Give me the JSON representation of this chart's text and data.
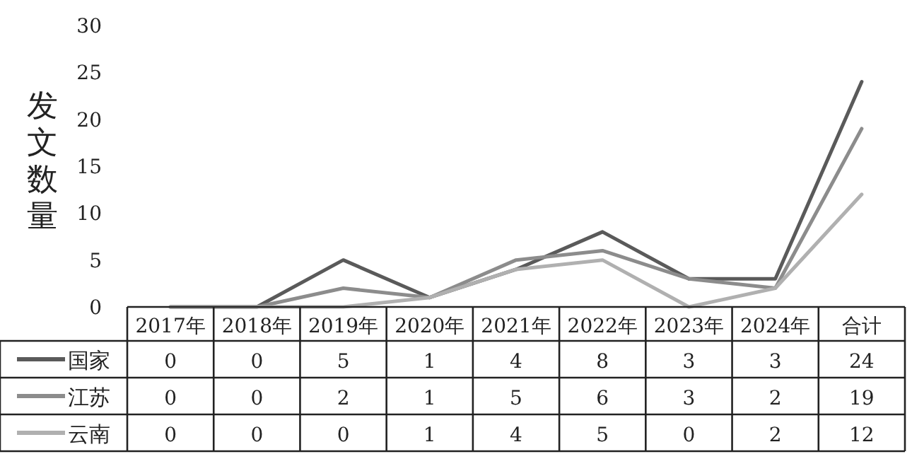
{
  "chart_data": {
    "type": "line",
    "ylabel": "发文数量",
    "categories": [
      "2017年",
      "2018年",
      "2019年",
      "2020年",
      "2021年",
      "2022年",
      "2023年",
      "2024年",
      "合计"
    ],
    "series": [
      {
        "name": "国家",
        "color": "#5a5a5a",
        "values": [
          0,
          0,
          5,
          1,
          4,
          8,
          3,
          3,
          24
        ]
      },
      {
        "name": "江苏",
        "color": "#8c8c8c",
        "values": [
          0,
          0,
          2,
          1,
          5,
          6,
          3,
          2,
          19
        ]
      },
      {
        "name": "云南",
        "color": "#b0b0b0",
        "values": [
          0,
          0,
          0,
          1,
          4,
          5,
          0,
          2,
          12
        ]
      }
    ],
    "ylim": [
      0,
      30
    ],
    "yticks": [
      0,
      5,
      10,
      15,
      20,
      25,
      30
    ],
    "grid": false,
    "legend": "bottom",
    "data_labels": true,
    "marker": "none",
    "line_style": "solid"
  }
}
